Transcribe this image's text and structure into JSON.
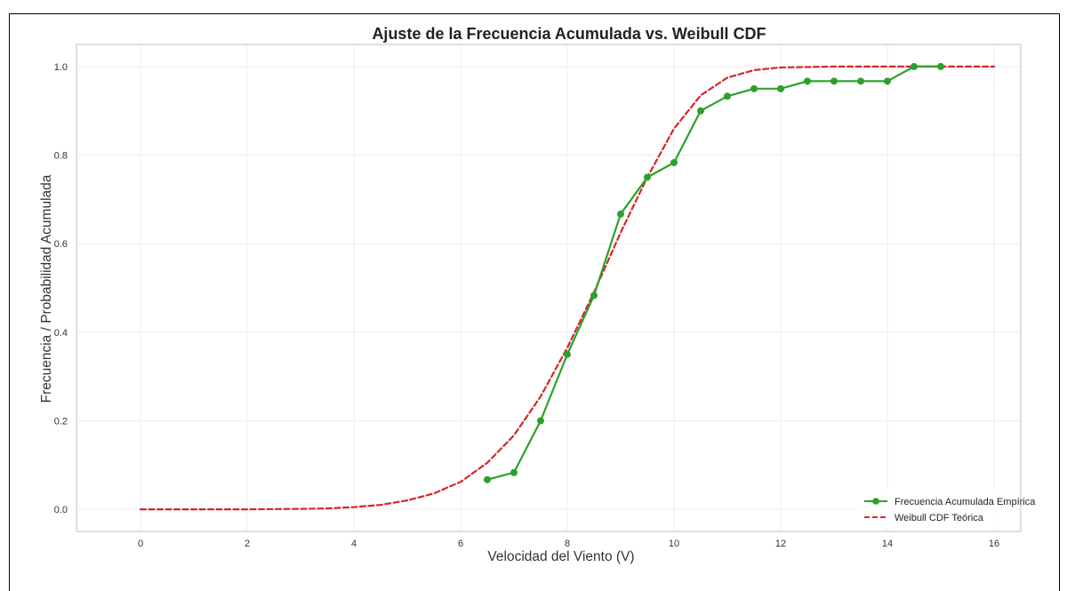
{
  "chart_data": {
    "type": "line",
    "title": "Ajuste de la Frecuencia Acumulada vs. Weibull CDF",
    "xlabel": "Velocidad del Viento (V)",
    "ylabel": "Frecuencia / Probabilidad Acumulada",
    "xlim": [
      -1.2,
      16.5
    ],
    "ylim": [
      -0.05,
      1.05
    ],
    "xticks": [
      "0",
      "2",
      "4",
      "6",
      "8",
      "10",
      "12",
      "14",
      "16"
    ],
    "yticks": [
      "0.0",
      "0.2",
      "0.4",
      "0.6",
      "0.8",
      "1.0"
    ],
    "grid": true,
    "legend_position": "bottom-right",
    "series": [
      {
        "name": "Frecuencia Acumulada Empírica",
        "style": "line-markers",
        "color": "#2ca02c",
        "x": [
          6.5,
          7.0,
          7.5,
          8.0,
          8.5,
          9.0,
          9.5,
          10.0,
          10.5,
          11.0,
          11.5,
          12.0,
          12.5,
          13.0,
          13.5,
          14.0,
          14.5,
          15.0
        ],
        "y": [
          0.067,
          0.083,
          0.2,
          0.35,
          0.483,
          0.667,
          0.75,
          0.783,
          0.9,
          0.933,
          0.95,
          0.95,
          0.967,
          0.967,
          0.967,
          0.967,
          1.0,
          1.0
        ]
      },
      {
        "name": "Weibull CDF Teórica",
        "style": "dashed",
        "color": "#d62728",
        "x": [
          0,
          1,
          2,
          3,
          3.5,
          4,
          4.5,
          5,
          5.5,
          6,
          6.5,
          7,
          7.5,
          8,
          8.5,
          9,
          9.5,
          10,
          10.5,
          11,
          11.5,
          12,
          13,
          14,
          15,
          16
        ],
        "y": [
          0.0,
          0.0,
          0.0,
          0.001,
          0.002,
          0.005,
          0.01,
          0.02,
          0.036,
          0.062,
          0.105,
          0.167,
          0.255,
          0.365,
          0.49,
          0.625,
          0.75,
          0.86,
          0.935,
          0.975,
          0.992,
          0.998,
          1.0,
          1.0,
          1.0,
          1.0
        ]
      }
    ]
  }
}
